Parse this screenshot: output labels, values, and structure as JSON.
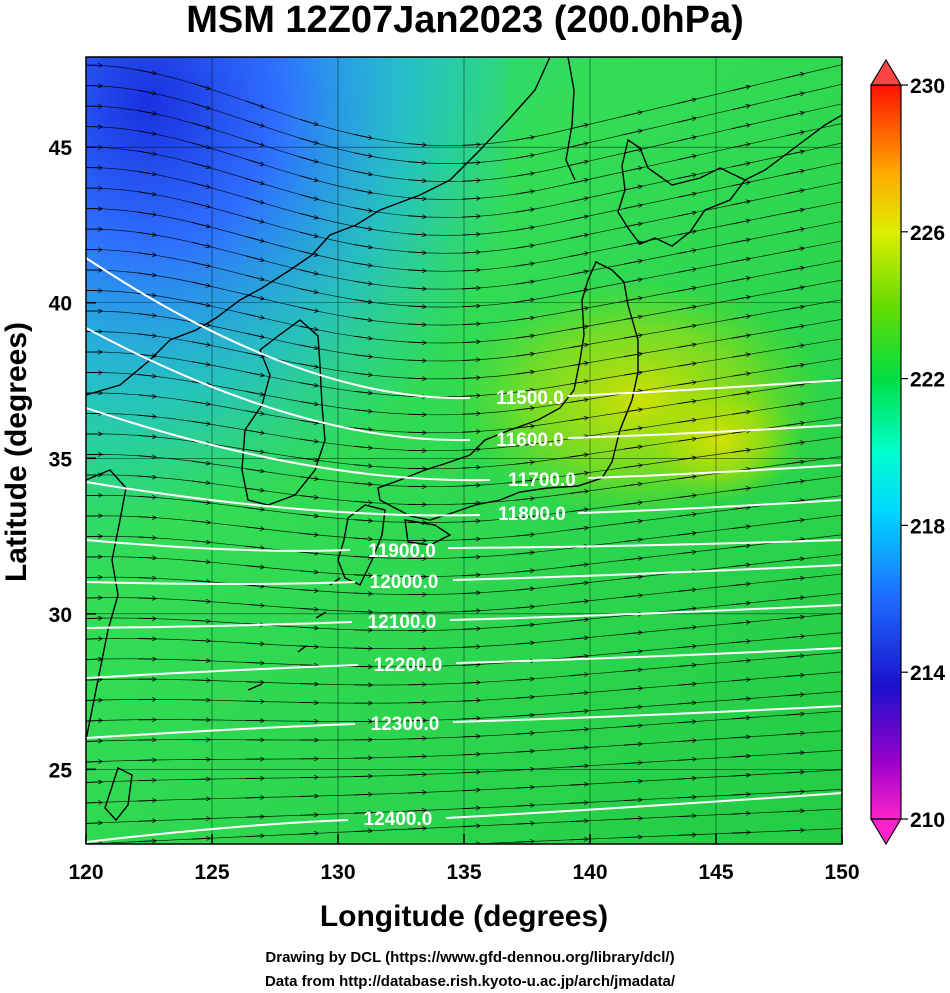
{
  "title": "MSM 12Z07Jan2023 (200.0hPa)",
  "x_axis": {
    "label": "Longitude (degrees)",
    "range": [
      120,
      150
    ],
    "ticks": [
      "120",
      "125",
      "130",
      "135",
      "140",
      "145",
      "150"
    ]
  },
  "y_axis": {
    "label": "Latitude  (degrees)",
    "range": [
      22.6,
      47.9
    ],
    "ticks": [
      "25",
      "30",
      "35",
      "40",
      "45"
    ]
  },
  "colorbar": {
    "ticks": [
      "210",
      "214",
      "218",
      "222",
      "226",
      "230"
    ],
    "range": [
      210,
      230
    ],
    "colors": [
      "#ff00cc",
      "#8800cc",
      "#2222dd",
      "#2266ff",
      "#00ccff",
      "#00ffcc",
      "#00dd44",
      "#33dd00",
      "#99dd00",
      "#ddee00",
      "#ffcc00",
      "#ff8800",
      "#ff3300",
      "#ff0000"
    ]
  },
  "contours": [
    {
      "label": "11500.0"
    },
    {
      "label": "11600.0"
    },
    {
      "label": "11700.0"
    },
    {
      "label": "11800.0"
    },
    {
      "label": "11900.0"
    },
    {
      "label": "12000.0"
    },
    {
      "label": "12100.0"
    },
    {
      "label": "12200.0"
    },
    {
      "label": "12300.0"
    },
    {
      "label": "12400.0"
    }
  ],
  "credits": {
    "line1": "Drawing by DCL (https://www.gfd-dennou.org/library/dcl/)",
    "line2": "Data from http://database.rish.kyoto-u.ac.jp/arch/jmadata/"
  }
}
